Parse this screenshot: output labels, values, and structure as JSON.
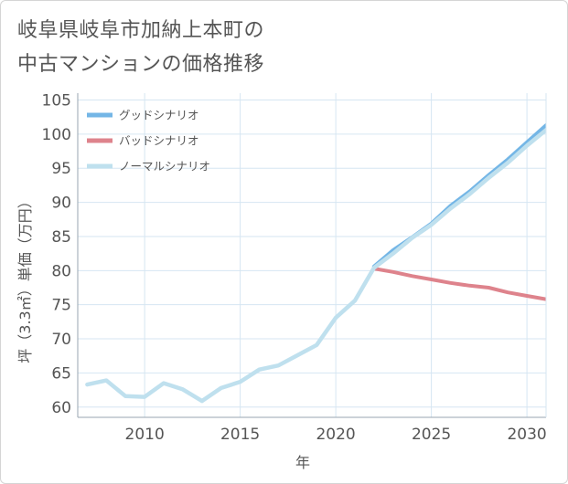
{
  "title": {
    "line1": "岐阜県岐阜市加納上本町の",
    "line2": "中古マンションの価格推移"
  },
  "colors": {
    "good": "#74b6e6",
    "bad": "#de838c",
    "normal": "#bfe0ee",
    "grid": "#d6e6f2",
    "axis": "#9aa6b0",
    "text": "#555555"
  },
  "chart_data": {
    "type": "line",
    "title": "岐阜県岐阜市加納上本町の中古マンションの価格推移",
    "xlabel": "年",
    "ylabel": "坪（3.3㎡）単価（万円）",
    "xlim": [
      2006.5,
      2031
    ],
    "ylim": [
      58.5,
      106
    ],
    "xticks": [
      2010,
      2015,
      2020,
      2025,
      2030
    ],
    "xtick_labels": [
      "2010",
      "2015",
      "2020",
      "2025",
      "2030"
    ],
    "yticks": [
      60,
      65,
      70,
      75,
      80,
      85,
      90,
      95,
      100,
      105
    ],
    "ytick_labels": [
      "60",
      "65",
      "70",
      "75",
      "80",
      "85",
      "90",
      "95",
      "100",
      "105"
    ],
    "grid": true,
    "legend_position": "top-left",
    "series": [
      {
        "name": "グッドシナリオ",
        "color": "#74b6e6",
        "x": [
          2022,
          2023,
          2024,
          2025,
          2026,
          2027,
          2028,
          2029,
          2030,
          2031
        ],
        "y": [
          80.6,
          83.0,
          84.9,
          86.9,
          89.5,
          91.6,
          94.0,
          96.3,
          98.8,
          101.3
        ]
      },
      {
        "name": "バッドシナリオ",
        "color": "#de838c",
        "x": [
          2022,
          2023,
          2024,
          2025,
          2026,
          2027,
          2028,
          2029,
          2030,
          2031
        ],
        "y": [
          80.3,
          79.8,
          79.2,
          78.7,
          78.2,
          77.8,
          77.5,
          76.8,
          76.3,
          75.8
        ]
      },
      {
        "name": "ノーマルシナリオ",
        "color": "#bfe0ee",
        "x": [
          2007,
          2008,
          2009,
          2010,
          2011,
          2012,
          2013,
          2014,
          2015,
          2016,
          2017,
          2018,
          2019,
          2020,
          2021,
          2022,
          2023,
          2024,
          2025,
          2026,
          2027,
          2028,
          2029,
          2030,
          2031
        ],
        "y": [
          63.3,
          63.9,
          61.6,
          61.5,
          63.5,
          62.6,
          60.9,
          62.8,
          63.7,
          65.5,
          66.1,
          67.6,
          69.1,
          73.1,
          75.6,
          80.4,
          82.5,
          84.8,
          86.7,
          89.1,
          91.2,
          93.6,
          95.8,
          98.3,
          100.6
        ]
      }
    ]
  }
}
